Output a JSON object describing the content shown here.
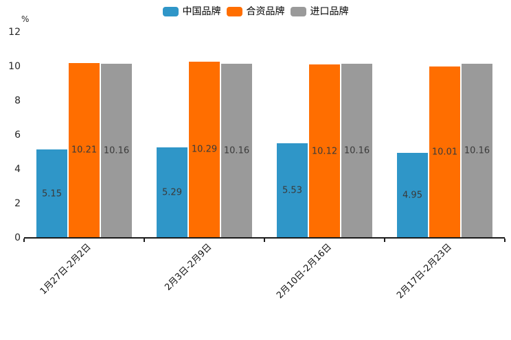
{
  "chart_data": {
    "type": "bar",
    "title": "",
    "unit_label": "%",
    "xlabel": "",
    "ylabel": "%",
    "categories": [
      "1月27日-2月2日",
      "2月3日-2月9日",
      "2月10日-2月16日",
      "2月17日-2月23日"
    ],
    "series": [
      {
        "name": "中国品牌",
        "color": "#2F96C8",
        "values": [
          5.15,
          5.29,
          5.53,
          4.95
        ]
      },
      {
        "name": "合资品牌",
        "color": "#FF6E00",
        "values": [
          10.21,
          10.29,
          10.12,
          10.01
        ]
      },
      {
        "name": "进口品牌",
        "color": "#9A9A9A",
        "values": [
          10.16,
          10.16,
          10.16,
          10.16
        ]
      }
    ],
    "yticks": [
      0,
      2,
      4,
      6,
      8,
      10,
      12
    ],
    "ylim": [
      0,
      12
    ],
    "grid": false,
    "legend_position": "top",
    "value_labels": "centered-in-bar, 2 decimals",
    "axis_color": "#1a1a1a",
    "value_label_color": "#3a3a3a"
  }
}
